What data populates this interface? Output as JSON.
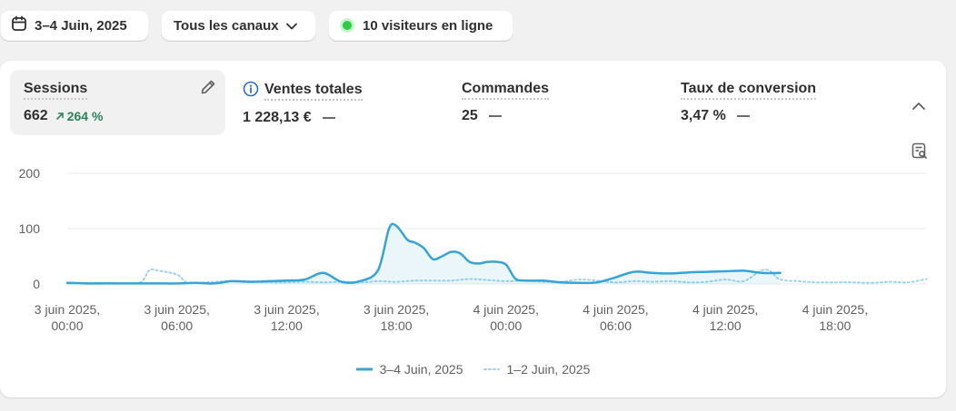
{
  "filters": {
    "date_label": "3–4 Juin, 2025",
    "channel_label": "Tous les canaux",
    "visitors_label": "10 visiteurs en ligne"
  },
  "metrics": [
    {
      "label": "Sessions",
      "value": "662",
      "change": "264 %"
    },
    {
      "label": "Ventes totales",
      "value": "1 228,13 €"
    },
    {
      "label": "Commandes",
      "value": "25"
    },
    {
      "label": "Taux de conversion",
      "value": "3,47 %"
    }
  ],
  "colors": {
    "primary_series": "#36a3d9",
    "compare_series": "#9fd3ec",
    "trend_up": "#29845a"
  },
  "icons": [
    "calendar-icon",
    "chevron-down-icon",
    "pencil-icon",
    "info-icon",
    "chevron-up-icon",
    "report-icon",
    "trend-up-arrow-icon"
  ],
  "chart_data": {
    "type": "line",
    "y_ticks": [
      "200",
      "100",
      "0"
    ],
    "ylim": [
      0,
      200
    ],
    "x_tick_labels": [
      [
        "3 juin 2025,",
        "00:00"
      ],
      [
        "3 juin 2025,",
        "06:00"
      ],
      [
        "3 juin 2025,",
        "12:00"
      ],
      [
        "3 juin 2025,",
        "18:00"
      ],
      [
        "4 juin 2025,",
        "00:00"
      ],
      [
        "4 juin 2025,",
        "06:00"
      ],
      [
        "4 juin 2025,",
        "12:00"
      ],
      [
        "4 juin 2025,",
        "18:00"
      ]
    ],
    "x_hours_range": [
      0,
      47
    ],
    "series": [
      {
        "name": "3–4 Juin, 2025",
        "style": "solid",
        "points": [
          [
            0,
            2
          ],
          [
            1,
            1
          ],
          [
            2,
            1
          ],
          [
            3,
            1
          ],
          [
            4,
            1
          ],
          [
            5,
            1
          ],
          [
            6,
            1
          ],
          [
            7,
            2
          ],
          [
            8,
            1
          ],
          [
            9,
            5
          ],
          [
            10,
            4
          ],
          [
            11,
            5
          ],
          [
            12,
            6
          ],
          [
            13,
            8
          ],
          [
            14,
            20
          ],
          [
            15,
            4
          ],
          [
            16,
            5
          ],
          [
            17,
            25
          ],
          [
            17.6,
            100
          ],
          [
            18,
            105
          ],
          [
            18.6,
            80
          ],
          [
            19,
            75
          ],
          [
            19.5,
            65
          ],
          [
            20,
            45
          ],
          [
            20.5,
            50
          ],
          [
            21,
            58
          ],
          [
            21.5,
            55
          ],
          [
            22,
            40
          ],
          [
            22.5,
            37
          ],
          [
            23,
            40
          ],
          [
            23.5,
            40
          ],
          [
            24,
            35
          ],
          [
            24.5,
            10
          ],
          [
            25,
            6
          ],
          [
            26,
            6
          ],
          [
            27,
            3
          ],
          [
            28,
            2
          ],
          [
            29,
            3
          ],
          [
            30,
            12
          ],
          [
            31,
            22
          ],
          [
            32,
            20
          ],
          [
            33,
            19
          ],
          [
            34,
            21
          ],
          [
            35,
            22
          ],
          [
            36,
            23
          ],
          [
            37,
            24
          ],
          [
            38,
            20
          ],
          [
            39,
            20
          ]
        ]
      },
      {
        "name": "1–2 Juin, 2025",
        "style": "dotted",
        "points": [
          [
            0,
            1
          ],
          [
            1,
            2
          ],
          [
            2,
            2
          ],
          [
            3,
            1
          ],
          [
            4,
            3
          ],
          [
            4.5,
            25
          ],
          [
            5,
            24
          ],
          [
            6,
            17
          ],
          [
            6.5,
            3
          ],
          [
            7,
            2
          ],
          [
            8,
            4
          ],
          [
            9,
            5
          ],
          [
            10,
            5
          ],
          [
            11,
            3
          ],
          [
            12,
            3
          ],
          [
            13,
            4
          ],
          [
            14,
            3
          ],
          [
            15,
            4
          ],
          [
            16,
            3
          ],
          [
            17,
            5
          ],
          [
            18,
            4
          ],
          [
            19,
            6
          ],
          [
            20,
            6
          ],
          [
            21,
            6
          ],
          [
            22,
            9
          ],
          [
            23,
            7
          ],
          [
            24,
            5
          ],
          [
            25,
            6
          ],
          [
            26,
            4
          ],
          [
            27,
            4
          ],
          [
            28,
            8
          ],
          [
            29,
            6
          ],
          [
            30,
            3
          ],
          [
            31,
            5
          ],
          [
            32,
            4
          ],
          [
            33,
            5
          ],
          [
            34,
            3
          ],
          [
            35,
            4
          ],
          [
            36,
            8
          ],
          [
            37,
            5
          ],
          [
            38,
            25
          ],
          [
            38.5,
            22
          ],
          [
            39,
            8
          ],
          [
            40,
            5
          ],
          [
            41,
            3
          ],
          [
            42,
            3
          ],
          [
            43,
            3
          ],
          [
            44,
            2
          ],
          [
            45,
            4
          ],
          [
            46,
            3
          ],
          [
            47,
            9
          ]
        ]
      }
    ],
    "legend_position": "bottom-center"
  }
}
